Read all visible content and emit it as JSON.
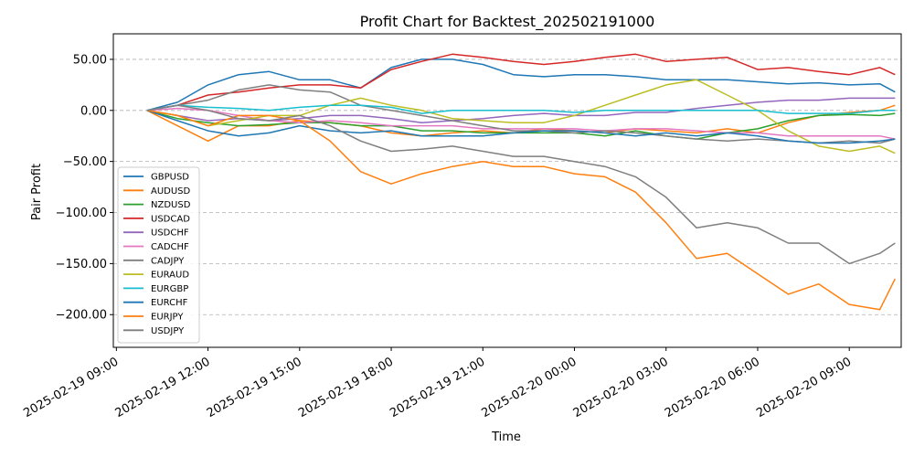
{
  "chart_data": {
    "type": "line",
    "title": "Profit Chart for Backtest_202502191000",
    "xlabel": "Time",
    "ylabel": "Pair Profit",
    "x_ticks": [
      "2025-02-19 09:00",
      "2025-02-19 12:00",
      "2025-02-19 15:00",
      "2025-02-19 18:00",
      "2025-02-19 21:00",
      "2025-02-20 00:00",
      "2025-02-20 03:00",
      "2025-02-20 06:00",
      "2025-02-20 09:00"
    ],
    "y_ticks": [
      50,
      0,
      -50,
      -100,
      -150,
      -200
    ],
    "y_tick_labels": [
      "50.00",
      "0.00",
      "−50.00",
      "−100.00",
      "−150.00",
      "−200.00"
    ],
    "ylim": [
      -232,
      75
    ],
    "xlim_hours": [
      -0.1,
      25.7
    ],
    "grid": "y-dashed",
    "legend_position": "lower-left",
    "x": [
      "2025-02-19 10:00",
      "2025-02-19 11:00",
      "2025-02-19 12:00",
      "2025-02-19 13:00",
      "2025-02-19 14:00",
      "2025-02-19 15:00",
      "2025-02-19 16:00",
      "2025-02-19 17:00",
      "2025-02-19 18:00",
      "2025-02-19 19:00",
      "2025-02-19 20:00",
      "2025-02-19 21:00",
      "2025-02-19 22:00",
      "2025-02-19 23:00",
      "2025-02-20 00:00",
      "2025-02-20 01:00",
      "2025-02-20 02:00",
      "2025-02-20 03:00",
      "2025-02-20 04:00",
      "2025-02-20 05:00",
      "2025-02-20 06:00",
      "2025-02-20 07:00",
      "2025-02-20 08:00",
      "2025-02-20 09:00",
      "2025-02-20 10:00",
      "2025-02-20 10:30"
    ],
    "series": [
      {
        "name": "GBPUSD",
        "color": "#1f77b4",
        "values": [
          0,
          8,
          25,
          35,
          38,
          30,
          30,
          22,
          42,
          50,
          50,
          45,
          35,
          33,
          35,
          35,
          33,
          30,
          30,
          30,
          28,
          26,
          27,
          25,
          26,
          18
        ]
      },
      {
        "name": "AUDUSD",
        "color": "#ff7f0e",
        "values": [
          0,
          -15,
          -30,
          -15,
          -15,
          -10,
          -12,
          -15,
          -22,
          -25,
          -22,
          -20,
          -22,
          -18,
          -20,
          -22,
          -18,
          -20,
          -22,
          -18,
          -22,
          -12,
          -5,
          -2,
          0,
          5
        ]
      },
      {
        "name": "NZDUSD",
        "color": "#2ca02c",
        "values": [
          0,
          -8,
          -12,
          -15,
          -14,
          -12,
          -12,
          -15,
          -15,
          -20,
          -20,
          -22,
          -22,
          -22,
          -22,
          -25,
          -20,
          -25,
          -28,
          -22,
          -18,
          -10,
          -5,
          -4,
          -5,
          -3
        ]
      },
      {
        "name": "USDCAD",
        "color": "#d62728",
        "values": [
          0,
          5,
          15,
          18,
          22,
          25,
          25,
          22,
          40,
          48,
          55,
          52,
          48,
          45,
          48,
          52,
          55,
          48,
          50,
          52,
          40,
          42,
          38,
          35,
          42,
          35
        ]
      },
      {
        "name": "USDCHF",
        "color": "#9467bd",
        "values": [
          0,
          -5,
          -10,
          -8,
          -10,
          -8,
          -5,
          -5,
          -8,
          -12,
          -10,
          -8,
          -5,
          -3,
          -5,
          -5,
          -2,
          -2,
          2,
          5,
          8,
          10,
          10,
          12,
          12,
          12
        ]
      },
      {
        "name": "CADCHF",
        "color": "#e377c2",
        "values": [
          0,
          2,
          0,
          -5,
          -10,
          -12,
          -10,
          -12,
          -15,
          -15,
          -15,
          -18,
          -18,
          -18,
          -18,
          -20,
          -18,
          -18,
          -20,
          -22,
          -22,
          -25,
          -25,
          -25,
          -25,
          -28
        ]
      },
      {
        "name": "CADJPY",
        "color": "#7f7f7f",
        "values": [
          0,
          5,
          10,
          20,
          25,
          20,
          18,
          5,
          0,
          -5,
          -10,
          -15,
          -20,
          -20,
          -22,
          -20,
          -22,
          -25,
          -28,
          -30,
          -28,
          -30,
          -32,
          -30,
          -32,
          -28
        ]
      },
      {
        "name": "EURAUD",
        "color": "#bcbd22",
        "values": [
          0,
          -5,
          -15,
          -10,
          -5,
          -5,
          5,
          12,
          5,
          0,
          -8,
          -10,
          -12,
          -12,
          -5,
          5,
          15,
          25,
          30,
          15,
          0,
          -20,
          -35,
          -40,
          -35,
          -42
        ]
      },
      {
        "name": "EURGBP",
        "color": "#17becf",
        "values": [
          0,
          5,
          3,
          2,
          0,
          3,
          5,
          5,
          3,
          -3,
          0,
          0,
          0,
          0,
          -2,
          0,
          0,
          0,
          0,
          0,
          0,
          -3,
          -3,
          -3,
          0,
          0
        ]
      },
      {
        "name": "EURCHF",
        "color": "#1f77b4",
        "values": [
          0,
          -10,
          -20,
          -25,
          -22,
          -15,
          -20,
          -22,
          -20,
          -25,
          -25,
          -25,
          -22,
          -20,
          -20,
          -22,
          -25,
          -22,
          -25,
          -22,
          -25,
          -30,
          -32,
          -32,
          -30,
          -28
        ]
      },
      {
        "name": "EURJPY",
        "color": "#ff7f0e",
        "values": [
          0,
          -5,
          -15,
          -5,
          -5,
          -10,
          -30,
          -60,
          -72,
          -62,
          -55,
          -50,
          -55,
          -55,
          -62,
          -65,
          -80,
          -110,
          -145,
          -140,
          -160,
          -180,
          -170,
          -190,
          -195,
          -165
        ]
      },
      {
        "name": "USDJPY",
        "color": "#7f7f7f",
        "values": [
          0,
          5,
          0,
          -8,
          -10,
          -5,
          -15,
          -30,
          -40,
          -38,
          -35,
          -40,
          -45,
          -45,
          -50,
          -55,
          -65,
          -85,
          -115,
          -110,
          -115,
          -130,
          -130,
          -150,
          -140,
          -130
        ]
      }
    ]
  }
}
